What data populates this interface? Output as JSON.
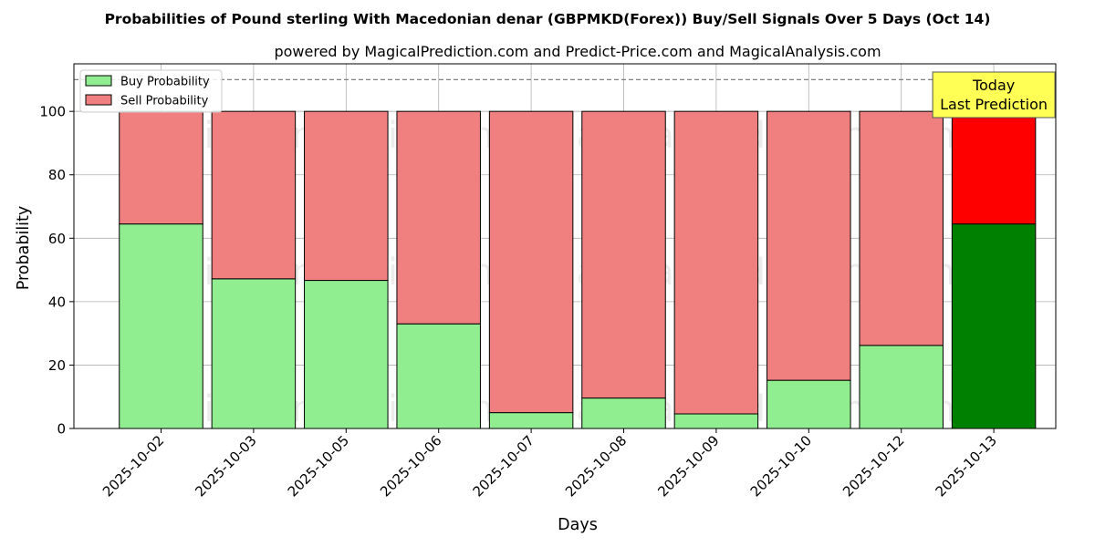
{
  "chart_data": {
    "type": "bar",
    "stacked": true,
    "title": "Probabilities of Pound sterling With Macedonian denar (GBPMKD(Forex)) Buy/Sell Signals Over 5 Days (Oct 14)",
    "subtitle": "powered by MagicalPrediction.com and Predict-Price.com and MagicalAnalysis.com",
    "xlabel": "Days",
    "ylabel": "Probability",
    "ylim": [
      0,
      115
    ],
    "yticks": [
      0,
      20,
      40,
      60,
      80,
      100
    ],
    "grid": true,
    "legend_position": "top-left",
    "reference_line": {
      "y": 110,
      "style": "dashed"
    },
    "categories": [
      "2025-10-02",
      "2025-10-03",
      "2025-10-05",
      "2025-10-06",
      "2025-10-07",
      "2025-10-08",
      "2025-10-09",
      "2025-10-10",
      "2025-10-12",
      "2025-10-13"
    ],
    "series": [
      {
        "name": "Buy Probability",
        "values": [
          64.5,
          47.2,
          46.7,
          33.0,
          5.0,
          9.6,
          4.6,
          15.2,
          26.2,
          64.5
        ]
      },
      {
        "name": "Sell Probability",
        "values": [
          35.5,
          52.8,
          53.3,
          67.0,
          95.0,
          90.4,
          95.4,
          84.8,
          73.8,
          35.5
        ]
      }
    ],
    "colors": {
      "buy": "#90EE90",
      "sell": "#F08080",
      "buy_highlight": "#008000",
      "sell_highlight": "#FF0000",
      "annotation_bg": "#FFFF55"
    },
    "highlight_index": 9,
    "annotation": {
      "line1": "Today",
      "line2": "Last Prediction"
    },
    "watermarks": [
      "MagicalAnalysis.com",
      "MagicalPrediction.com"
    ]
  }
}
